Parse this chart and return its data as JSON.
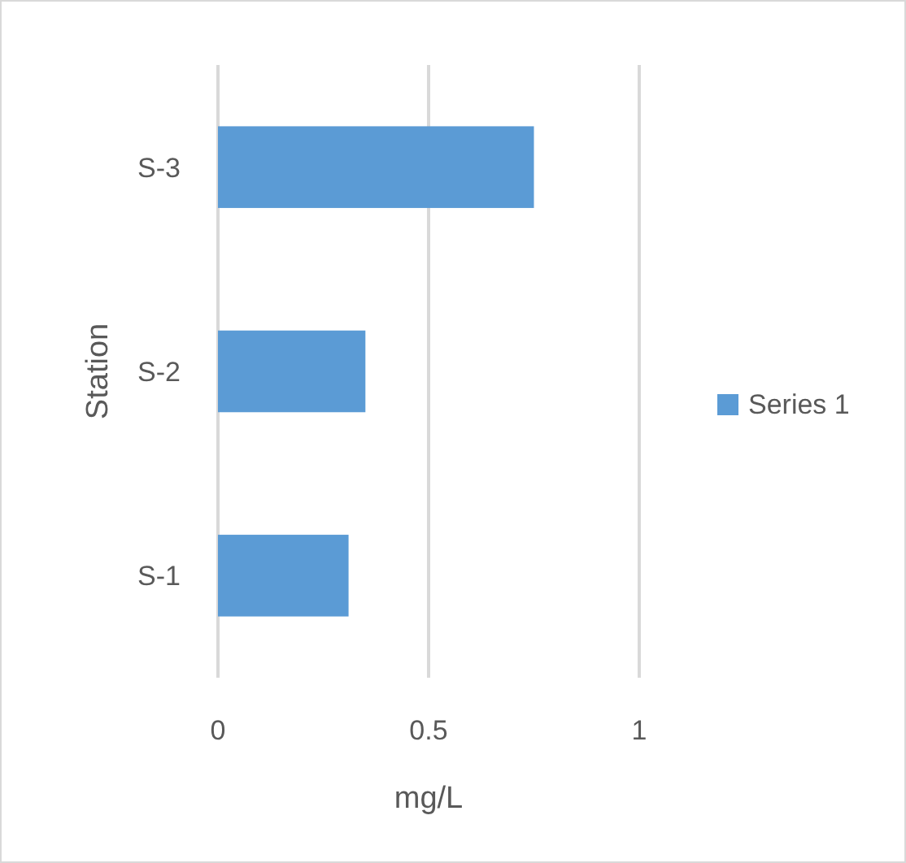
{
  "chart_data": {
    "type": "bar",
    "orientation": "horizontal",
    "categories": [
      "S-3",
      "S-2",
      "S-1"
    ],
    "series": [
      {
        "name": "Series 1",
        "color": "#5b9bd5",
        "values": [
          0.75,
          0.35,
          0.31
        ]
      }
    ],
    "xlabel": "mg/L",
    "ylabel": "Station",
    "xlim": [
      0,
      1
    ],
    "xticks": [
      0,
      0.5,
      1
    ],
    "grid": "x",
    "legend": "right"
  }
}
